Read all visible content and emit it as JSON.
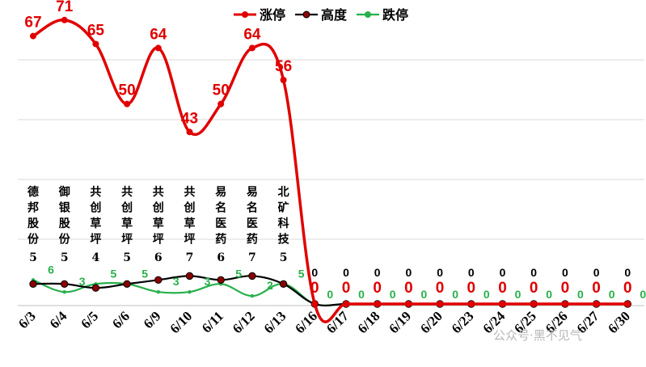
{
  "chart_data": {
    "type": "line",
    "categories": [
      "6/3",
      "6/4",
      "6/5",
      "6/6",
      "6/9",
      "6/10",
      "6/11",
      "6/12",
      "6/13",
      "6/16",
      "6/17",
      "6/18",
      "6/19",
      "6/20",
      "6/23",
      "6/24",
      "6/25",
      "6/26",
      "6/27",
      "6/30"
    ],
    "series": [
      {
        "name": "涨停",
        "color": "#e00000",
        "values": [
          67,
          71,
          65,
          50,
          64,
          43,
          50,
          64,
          56,
          0,
          0,
          0,
          0,
          0,
          0,
          0,
          0,
          0,
          0,
          0
        ]
      },
      {
        "name": "高度",
        "color": "#000000",
        "marker_color": "#8b0000",
        "values": [
          5,
          5,
          4,
          5,
          6,
          7,
          6,
          7,
          5,
          0,
          0,
          0,
          0,
          0,
          0,
          0,
          0,
          0,
          0,
          0
        ]
      },
      {
        "name": "跌停",
        "color": "#27b04b",
        "values": [
          6,
          3,
          5,
          5,
          3,
          3,
          5,
          2,
          5,
          0,
          0,
          0,
          0,
          0,
          0,
          0,
          0,
          0,
          0,
          0
        ]
      }
    ],
    "leaders": [
      {
        "name": "德邦股份",
        "height": "5"
      },
      {
        "name": "御银股份",
        "height": "5"
      },
      {
        "name": "共创草坪",
        "height": "4"
      },
      {
        "name": "共创草坪",
        "height": "5"
      },
      {
        "name": "共创草坪",
        "height": "6"
      },
      {
        "name": "共创草坪",
        "height": "7"
      },
      {
        "name": "易名医药",
        "height": "6"
      },
      {
        "name": "易名医药",
        "height": "7"
      },
      {
        "name": "北矿科技",
        "height": "5"
      }
    ],
    "ylim": [
      0,
      75
    ],
    "grid": true,
    "legend_position": "top-right"
  },
  "watermark": "公众号·黑不见气"
}
